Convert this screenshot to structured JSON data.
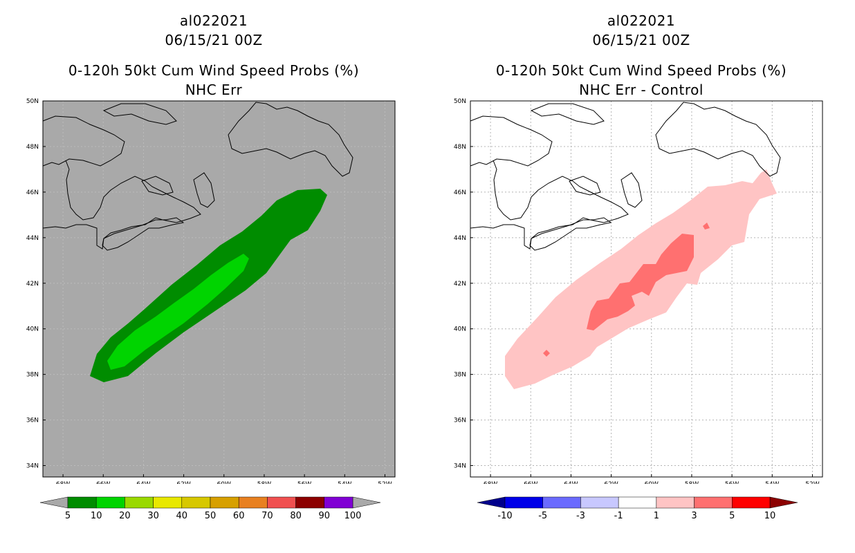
{
  "colors": {
    "map_bg_left": "#a9a9a9",
    "map_bg_right": "#ffffff",
    "outer_contour": "#008c00",
    "inner_contour": "#00d400",
    "diff_low": "#ffc4c4",
    "diff_mid": "#ff7070",
    "coast": "#000000",
    "grid": "#b4b4b4"
  },
  "panels": [
    {
      "id": "left",
      "storm_id": "al022021",
      "date": "06/15/21 00Z",
      "product": "0-120h 50kt Cum Wind Speed Probs (%)",
      "subtitle": "NHC Err",
      "colorbar": {
        "labels": [
          "5",
          "10",
          "20",
          "30",
          "40",
          "50",
          "60",
          "70",
          "80",
          "90",
          "100"
        ],
        "colors": [
          "#008c00",
          "#00d400",
          "#9ad900",
          "#e8e800",
          "#d7c800",
          "#d7a000",
          "#e88020",
          "#f05050",
          "#8c0000",
          "#8000d4"
        ]
      }
    },
    {
      "id": "right",
      "storm_id": "al022021",
      "date": "06/15/21 00Z",
      "product": "0-120h 50kt Cum Wind Speed Probs (%)",
      "subtitle": "NHC Err - Control",
      "colorbar": {
        "labels": [
          "-10",
          "-5",
          "-3",
          "-1",
          "1",
          "3",
          "5",
          "10"
        ],
        "colors": [
          "#0000e8",
          "#6a6aff",
          "#c8c8ff",
          "#ffffff",
          "#ffc4c4",
          "#ff7070",
          "#ff0000"
        ]
      }
    }
  ],
  "axes": {
    "lat_labels": [
      "50N",
      "48N",
      "46N",
      "44N",
      "42N",
      "40N",
      "38N",
      "36N",
      "34N"
    ],
    "lon_labels": [
      "68W",
      "66W",
      "64W",
      "62W",
      "60W",
      "58W",
      "56W",
      "54W",
      "52W"
    ]
  }
}
